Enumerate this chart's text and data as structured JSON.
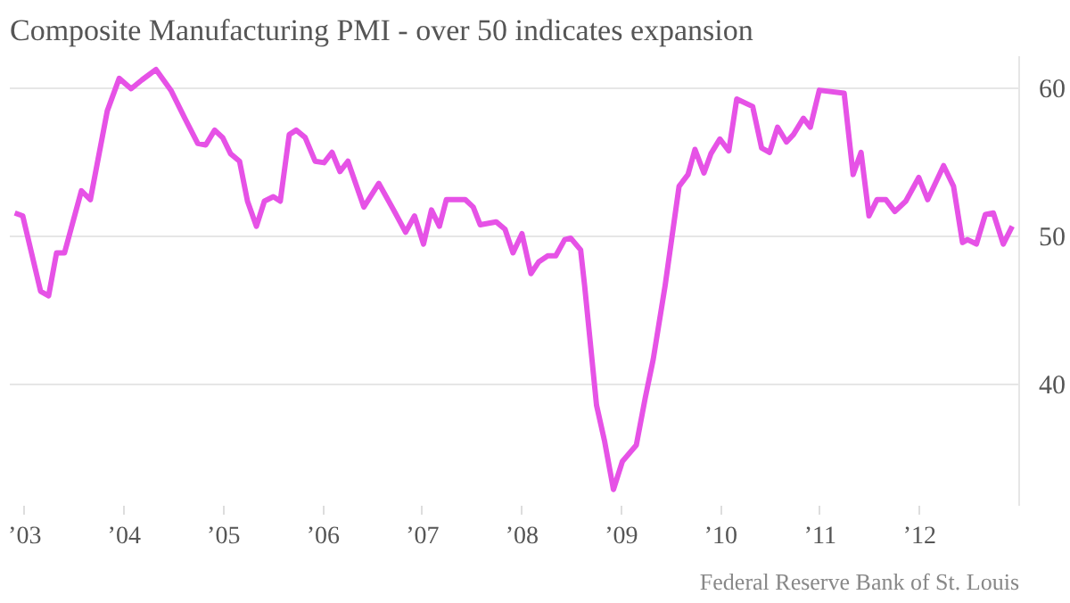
{
  "chart_data": {
    "type": "line",
    "title": "Composite Manufacturing PMI - over 50 indicates expansion",
    "annotations": [
      "Federal Reserve Bank of St. Louis"
    ],
    "x": [
      2002.9,
      2002.98,
      2003.16,
      2003.24,
      2003.32,
      2003.4,
      2003.57,
      2003.66,
      2003.83,
      2003.95,
      2004.07,
      2004.18,
      2004.32,
      2004.47,
      2004.61,
      2004.74,
      2004.82,
      2004.91,
      2004.99,
      2005.07,
      2005.16,
      2005.24,
      2005.33,
      2005.41,
      2005.5,
      2005.57,
      2005.66,
      2005.73,
      2005.82,
      2005.92,
      2006.01,
      2006.09,
      2006.17,
      2006.25,
      2006.41,
      2006.56,
      2006.71,
      2006.83,
      2006.92,
      2007.01,
      2007.09,
      2007.17,
      2007.24,
      2007.43,
      2007.51,
      2007.58,
      2007.74,
      2007.83,
      2007.91,
      2008.0,
      2008.09,
      2008.17,
      2008.26,
      2008.34,
      2008.43,
      2008.49,
      2008.59,
      2008.63,
      2008.75,
      2008.83,
      2008.92,
      2009.01,
      2009.15,
      2009.24,
      2009.32,
      2009.44,
      2009.58,
      2009.67,
      2009.74,
      2009.83,
      2009.9,
      2009.99,
      2010.08,
      2010.16,
      2010.32,
      2010.41,
      2010.49,
      2010.57,
      2010.66,
      2010.73,
      2010.83,
      2010.9,
      2010.99,
      2011.24,
      2011.33,
      2011.41,
      2011.49,
      2011.57,
      2011.66,
      2011.75,
      2011.86,
      2011.99,
      2012.08,
      2012.24,
      2012.34,
      2012.43,
      2012.48,
      2012.57,
      2012.66,
      2012.74,
      2012.84,
      2012.93
    ],
    "series": [
      {
        "color": "#e652e6",
        "values": [
          51.6,
          51.4,
          46.3,
          46.0,
          48.9,
          48.9,
          53.1,
          52.5,
          58.5,
          60.7,
          60.0,
          60.6,
          61.3,
          59.9,
          58.0,
          56.3,
          56.2,
          57.2,
          56.7,
          55.6,
          55.1,
          52.4,
          50.7,
          52.4,
          52.7,
          52.4,
          56.9,
          57.2,
          56.7,
          55.1,
          55.0,
          55.7,
          54.4,
          55.1,
          52.0,
          53.6,
          51.8,
          50.3,
          51.4,
          49.5,
          51.8,
          50.7,
          52.5,
          52.5,
          52.0,
          50.8,
          51.0,
          50.5,
          48.9,
          50.2,
          47.5,
          48.3,
          48.7,
          48.7,
          49.8,
          49.9,
          49.1,
          46.7,
          38.6,
          36.2,
          32.9,
          34.8,
          35.9,
          39.1,
          41.7,
          46.7,
          53.4,
          54.2,
          55.9,
          54.3,
          55.6,
          56.6,
          55.8,
          59.3,
          58.8,
          56.0,
          55.7,
          57.4,
          56.4,
          56.9,
          58.0,
          57.4,
          59.9,
          59.7,
          54.2,
          55.7,
          51.4,
          52.5,
          52.5,
          51.7,
          52.4,
          54.0,
          52.5,
          54.8,
          53.4,
          49.6,
          49.8,
          49.5,
          51.5,
          51.6,
          49.5,
          50.7
        ]
      }
    ],
    "xlim": [
      2002.85,
      2013.0
    ],
    "xticks": [
      {
        "value": 2003,
        "label": "’03"
      },
      {
        "value": 2004,
        "label": "’04"
      },
      {
        "value": 2005,
        "label": "’05"
      },
      {
        "value": 2006,
        "label": "’06"
      },
      {
        "value": 2007,
        "label": "’07"
      },
      {
        "value": 2008,
        "label": "’08"
      },
      {
        "value": 2009,
        "label": "’09"
      },
      {
        "value": 2010,
        "label": "’10"
      },
      {
        "value": 2011,
        "label": "’11"
      },
      {
        "value": 2012,
        "label": "’12"
      }
    ],
    "ylim": [
      31.8,
      62.2
    ],
    "yticks": [
      40,
      50,
      60
    ],
    "grid": "y",
    "line_style": "solid"
  }
}
